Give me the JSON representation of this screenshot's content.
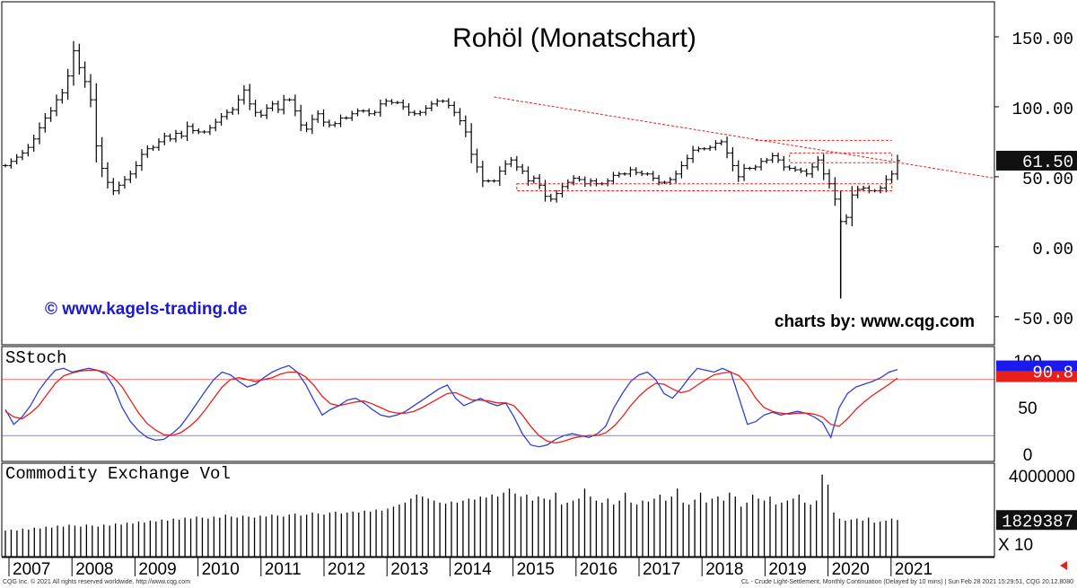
{
  "colors": {
    "price_bar": "#000000",
    "trendline": "#e8201c",
    "stoch_fast": "#2f3fd8",
    "stoch_slow": "#e8201c",
    "stoch_ref": "#e8201c",
    "stoch_ref_low": "#2f3fd8",
    "volume": "#000000",
    "watermark": "#1a1acc",
    "price_tag_bg": "#111111",
    "stoch_tag_bg": "#1a1aee"
  },
  "chart_data": [
    {
      "type": "line",
      "title": "Rohöl (Monatschart)",
      "annotations": [
        "© www.kagels-trading.de",
        "charts by: www.cqg.com"
      ],
      "y_ticks": [
        "150.00",
        "100.00",
        "50.00",
        "0.00",
        "-50.00"
      ],
      "ylim": [
        -70,
        175
      ],
      "current_value_label": "61.50",
      "series": [
        {
          "values": [
            58,
            61,
            64,
            67,
            71,
            77,
            85,
            92,
            97,
            105,
            110,
            122,
            140,
            128,
            118,
            105,
            72,
            56,
            46,
            40,
            44,
            48,
            52,
            58,
            66,
            70,
            71,
            75,
            79,
            77,
            81,
            79,
            86,
            83,
            82,
            82,
            85,
            89,
            93,
            96,
            98,
            105,
            112,
            102,
            96,
            94,
            99,
            102,
            98,
            105,
            105,
            97,
            87,
            84,
            91,
            95,
            89,
            87,
            88,
            92,
            92,
            95,
            97,
            97,
            95,
            96,
            102,
            104,
            103,
            103,
            100,
            96,
            95,
            96,
            99,
            102,
            104,
            104,
            101,
            96,
            90,
            82,
            66,
            57,
            47,
            47,
            47,
            54,
            59,
            62,
            57,
            54,
            47,
            49,
            44,
            36,
            34,
            38,
            43,
            46,
            49,
            48,
            45,
            47,
            45,
            45,
            47,
            51,
            52,
            52,
            55,
            53,
            52,
            52,
            49,
            46,
            46,
            48,
            52,
            58,
            63,
            69,
            70,
            70,
            71,
            74,
            75,
            67,
            58,
            50,
            56,
            56,
            57,
            61,
            62,
            65,
            62,
            57,
            56,
            55,
            54,
            52,
            57,
            62,
            52,
            45,
            34,
            18,
            21,
            37,
            41,
            42,
            40,
            40,
            42,
            48,
            52,
            61.5
          ],
          "x_labels": [
            "2007",
            "2008",
            "2009",
            "2010",
            "2011",
            "2012",
            "2013",
            "2014",
            "2015",
            "2016",
            "2017",
            "2018",
            "2019",
            "2020",
            "2021"
          ]
        }
      ]
    },
    {
      "type": "line",
      "title": "SStoch",
      "y_ticks": [
        "100",
        "50",
        "0"
      ],
      "ylim": [
        0,
        100
      ],
      "reference_lines": [
        80,
        20
      ],
      "current_value_label": "90.8",
      "series": [
        {
          "values": [
            48,
            32,
            40,
            52,
            68,
            80,
            90,
            92,
            88,
            90,
            92,
            90,
            86,
            72,
            50,
            35,
            25,
            18,
            15,
            16,
            22,
            30,
            42,
            55,
            68,
            80,
            88,
            85,
            78,
            72,
            75,
            82,
            88,
            92,
            95,
            88,
            75,
            58,
            42,
            48,
            52,
            58,
            60,
            55,
            48,
            42,
            40,
            42,
            46,
            52,
            58,
            64,
            70,
            74,
            60,
            52,
            56,
            60,
            55,
            52,
            55,
            40,
            22,
            10,
            8,
            10,
            16,
            20,
            22,
            20,
            18,
            22,
            30,
            50,
            65,
            78,
            85,
            88,
            80,
            65,
            60,
            70,
            82,
            92,
            90,
            88,
            92,
            88,
            60,
            32,
            35,
            42,
            45,
            42,
            44,
            46,
            44,
            40,
            34,
            18,
            50,
            65,
            72,
            75,
            78,
            82,
            88,
            90.8
          ]
        },
        {
          "values": [
            46,
            40,
            38,
            44,
            52,
            64,
            76,
            84,
            87,
            89,
            90,
            90,
            88,
            82,
            72,
            58,
            44,
            33,
            26,
            21,
            20,
            23,
            29,
            37,
            48,
            60,
            72,
            80,
            82,
            80,
            78,
            80,
            82,
            86,
            88,
            88,
            83,
            74,
            62,
            54,
            52,
            54,
            56,
            57,
            54,
            50,
            46,
            44,
            44,
            46,
            50,
            55,
            60,
            65,
            66,
            62,
            58,
            58,
            57,
            55,
            55,
            52,
            42,
            30,
            20,
            14,
            12,
            14,
            17,
            19,
            20,
            20,
            23,
            30,
            40,
            52,
            62,
            70,
            76,
            75,
            70,
            66,
            68,
            74,
            80,
            85,
            87,
            88,
            84,
            74,
            60,
            50,
            46,
            44,
            43,
            44,
            44,
            43,
            40,
            32,
            30,
            38,
            48,
            56,
            63,
            69,
            75,
            81.5
          ]
        }
      ]
    },
    {
      "type": "bar",
      "title": "Commodity Exchange Vol",
      "y_ticks": [
        "4000000"
      ],
      "scale_label": "X 10",
      "current_value_label": "1829387",
      "values": [
        1300000,
        1350000,
        1300000,
        1400000,
        1350000,
        1450000,
        1400000,
        1500000,
        1450000,
        1550000,
        1500000,
        1600000,
        1550000,
        1500000,
        1600000,
        1550000,
        1500000,
        1600000,
        1550000,
        1650000,
        1600000,
        1700000,
        1650000,
        1750000,
        1700000,
        1800000,
        1750000,
        1850000,
        1800000,
        1900000,
        1850000,
        1950000,
        1900000,
        2000000,
        1950000,
        1900000,
        2000000,
        1950000,
        2100000,
        2000000,
        1950000,
        2050000,
        2000000,
        1950000,
        2050000,
        2000000,
        2100000,
        2050000,
        2000000,
        2100000,
        2150000,
        2050000,
        2100000,
        2200000,
        2150000,
        2100000,
        2200000,
        2250000,
        2150000,
        2200000,
        2250000,
        2200000,
        2300000,
        2250000,
        2350000,
        2300000,
        2400000,
        2500000,
        2600000,
        2700000,
        2900000,
        3100000,
        3000000,
        2900000,
        2800000,
        2700000,
        2650000,
        2750000,
        2700000,
        2800000,
        2900000,
        2850000,
        3000000,
        2950000,
        3100000,
        3000000,
        3200000,
        3400000,
        3150000,
        3000000,
        3100000,
        2800000,
        3000000,
        2900000,
        2850000,
        3200000,
        2600000,
        2700000,
        2800000,
        2900000,
        3400000,
        3000000,
        2800000,
        2700000,
        2900000,
        2600000,
        2800000,
        3200000,
        2700000,
        2600000,
        2800000,
        2750000,
        2900000,
        3100000,
        2800000,
        3000000,
        3400000,
        2700000,
        2600000,
        2850000,
        3200000,
        2700000,
        2900000,
        3000000,
        2800000,
        3200000,
        3000000,
        2500000,
        2700000,
        3100000,
        2900000,
        2800000,
        3000000,
        2600000,
        2700000,
        2800000,
        2900000,
        3100000,
        2700000,
        2600000,
        2800000,
        4100000,
        3600000,
        2200000,
        1900000,
        1800000,
        1850000,
        1900000,
        1800000,
        1950000,
        1700000,
        1750000,
        1800000,
        1900000,
        1829387
      ]
    }
  ],
  "x_axis_labels": [
    "2007",
    "2008",
    "2009",
    "2010",
    "2011",
    "2012",
    "2013",
    "2014",
    "2015",
    "2016",
    "2017",
    "2018",
    "2019",
    "2020",
    "2021"
  ],
  "footer": {
    "left": "CQG Inc. © 2021 All rights reserved worldwide. http://www.cqg.com",
    "right": "CL - Crude Light-Settlement, Monthly Continuation (Delayed by 10 mins) | Sun Feb 28 2021 15:29:51, CQG 20.12.8080"
  }
}
